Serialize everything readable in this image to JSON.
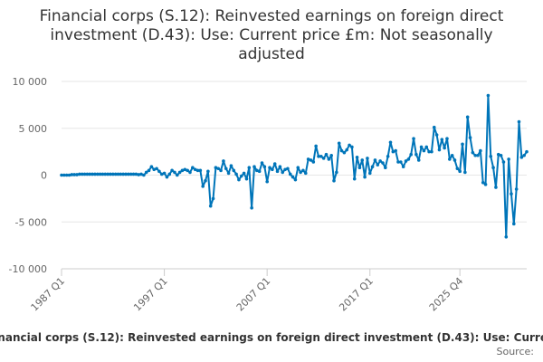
{
  "chart_data": {
    "type": "line",
    "title": "Financial corps (S.12): Reinvested earnings on foreign direct investment (D.43): Use: Current price £m: Not seasonally adjusted",
    "series": [
      {
        "name": "Financial corps (S.12): Reinvested earnings on foreign direct investment (D.43): Use: Current price £m: Not seasonally adjusted",
        "color": "#0075b9",
        "start": "1987 Q1",
        "end": "2025 Q4",
        "values": [
          0,
          0,
          0,
          0,
          50,
          50,
          50,
          100,
          100,
          100,
          100,
          100,
          100,
          100,
          100,
          100,
          100,
          100,
          100,
          100,
          100,
          100,
          100,
          100,
          100,
          100,
          100,
          100,
          100,
          100,
          50,
          100,
          0,
          300,
          500,
          900,
          600,
          700,
          400,
          100,
          200,
          -200,
          100,
          500,
          300,
          0,
          300,
          500,
          600,
          500,
          300,
          800,
          600,
          500,
          500,
          -1200,
          -600,
          400,
          -3300,
          -2500,
          800,
          700,
          500,
          1500,
          700,
          200,
          1000,
          500,
          100,
          -500,
          -100,
          200,
          -400,
          800,
          -3500,
          900,
          500,
          400,
          1300,
          900,
          -700,
          800,
          600,
          1200,
          400,
          900,
          300,
          600,
          700,
          100,
          -200,
          -500,
          800,
          300,
          500,
          200,
          1700,
          1600,
          1400,
          3100,
          2000,
          2000,
          1800,
          2200,
          1700,
          2100,
          -600,
          300,
          3400,
          2600,
          2400,
          2700,
          3200,
          3000,
          -400,
          1900,
          800,
          1600,
          -200,
          1800,
          200,
          900,
          1600,
          1100,
          1500,
          1300,
          800,
          2000,
          3500,
          2500,
          2600,
          1400,
          1400,
          900,
          1500,
          1700,
          2200,
          3900,
          2200,
          1600,
          3000,
          2600,
          3000,
          2500,
          2500,
          5100,
          4300,
          2700,
          3800,
          2900,
          3900,
          1700,
          2100,
          1600,
          700,
          400,
          3300,
          300,
          6200,
          4000,
          2400,
          2100,
          2100,
          2600,
          -800,
          -1000,
          8500,
          2000,
          800,
          -1300,
          2200,
          2100,
          1400,
          -6600,
          1700,
          -2000,
          -5200,
          -1500,
          5700,
          1900,
          2100,
          2500
        ]
      }
    ],
    "x_tick_labels": [
      "1987 Q1",
      "1997 Q1",
      "2007 Q1",
      "2017 Q1",
      "2025 Q4"
    ],
    "y_tick_labels": [
      "10 000",
      "5 000",
      "0",
      "-5 000",
      "-10 000"
    ],
    "y_ticks": [
      10000,
      5000,
      0,
      -5000,
      -10000
    ],
    "ylim": [
      -10000,
      10000
    ],
    "xlabel": "",
    "ylabel": "",
    "grid": true,
    "legend": "bottom",
    "credits": "Source:"
  }
}
